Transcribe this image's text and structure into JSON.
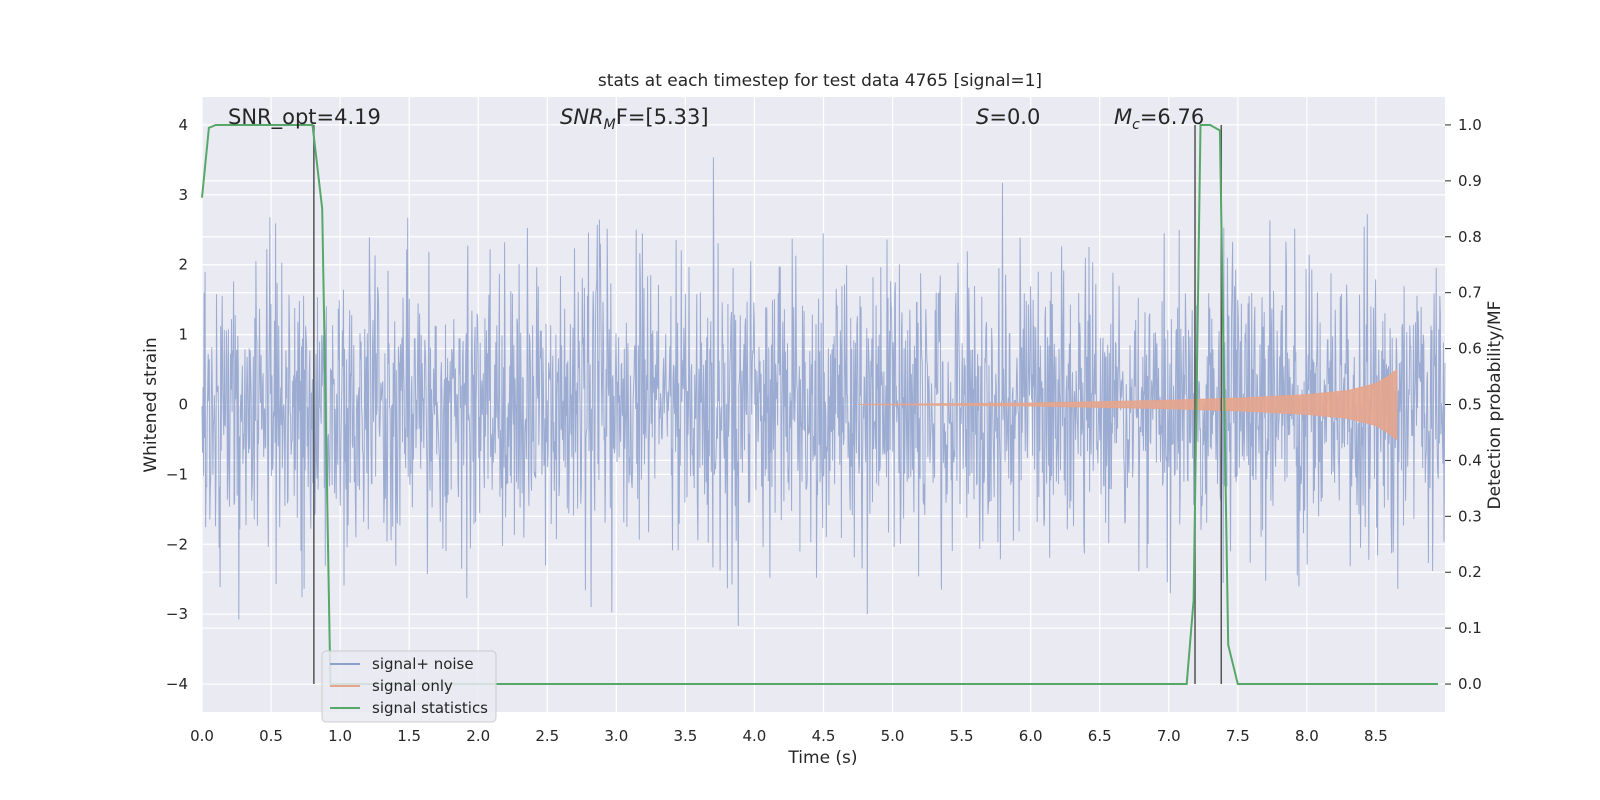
{
  "chart_data": {
    "type": "line",
    "title": "stats at each timestep for test data 4765 [signal=1]",
    "xlabel": "Time (s)",
    "ylabel": "Whitened strain",
    "y2label": "Detection probability/MF",
    "xlim": [
      0.0,
      9.0
    ],
    "ylim": [
      -4.4,
      4.4
    ],
    "y2lim": [
      -0.05,
      1.05
    ],
    "x_ticks": [
      0.0,
      0.5,
      1.0,
      1.5,
      2.0,
      2.5,
      3.0,
      3.5,
      4.0,
      4.5,
      5.0,
      5.5,
      6.0,
      6.5,
      7.0,
      7.5,
      8.0,
      8.5
    ],
    "x_tick_labels": [
      "0.0",
      "0.5",
      "1.0",
      "1.5",
      "2.0",
      "2.5",
      "3.0",
      "3.5",
      "4.0",
      "4.5",
      "5.0",
      "5.5",
      "6.0",
      "6.5",
      "7.0",
      "7.5",
      "8.0",
      "8.5"
    ],
    "y_ticks": [
      -4,
      -3,
      -2,
      -1,
      0,
      1,
      2,
      3,
      4
    ],
    "y_tick_labels": [
      "−4",
      "−3",
      "−2",
      "−1",
      "0",
      "1",
      "2",
      "3",
      "4"
    ],
    "y2_ticks": [
      0.0,
      0.1,
      0.2,
      0.3,
      0.4,
      0.5,
      0.6,
      0.7,
      0.8,
      0.9,
      1.0
    ],
    "y2_tick_labels": [
      "0.0",
      "0.1",
      "0.2",
      "0.3",
      "0.4",
      "0.5",
      "0.6",
      "0.7",
      "0.8",
      "0.9",
      "1.0"
    ],
    "grid": true,
    "legend_position": "lower-left",
    "legend": [
      "signal+ noise",
      "signal only",
      "signal statistics"
    ],
    "annotations": {
      "snr_opt": "SNR_opt=4.19",
      "snr_mf_main": "SNR",
      "snr_mf_sub": "M",
      "snr_mf_rest": "F=[5.33]",
      "s_main": "S",
      "s_rest": "=0.0",
      "mc_main": "M",
      "mc_sub": "c",
      "mc_rest": "=6.76"
    },
    "series": [
      {
        "name": "signal+ noise",
        "color": "#8da0cb",
        "noise_sigma": 1.0,
        "approx_envelope": {
          "upper": 4.0,
          "lower": -4.0
        }
      },
      {
        "name": "signal only",
        "color": "#e5a58c",
        "x_start": 4.75,
        "x_end": 8.65,
        "envelope_amplitude": [
          [
            4.75,
            0.0
          ],
          [
            6.0,
            0.02
          ],
          [
            7.0,
            0.06
          ],
          [
            7.5,
            0.09
          ],
          [
            8.0,
            0.14
          ],
          [
            8.3,
            0.2
          ],
          [
            8.5,
            0.3
          ],
          [
            8.6,
            0.42
          ],
          [
            8.65,
            0.5
          ]
        ]
      },
      {
        "name": "signal statistics",
        "color": "#55a868",
        "axis": "right",
        "points": [
          [
            0.0,
            0.87
          ],
          [
            0.05,
            0.995
          ],
          [
            0.1,
            1.0
          ],
          [
            0.8,
            1.0
          ],
          [
            0.87,
            0.85
          ],
          [
            0.93,
            0.0
          ],
          [
            7.13,
            0.0
          ],
          [
            7.18,
            0.15
          ],
          [
            7.23,
            1.0
          ],
          [
            7.3,
            1.0
          ],
          [
            7.37,
            0.99
          ],
          [
            7.43,
            0.07
          ],
          [
            7.5,
            0.0
          ],
          [
            8.95,
            0.0
          ]
        ]
      }
    ],
    "vertical_markers": {
      "color": "#555555",
      "x": [
        0.81,
        7.19,
        7.38
      ]
    }
  }
}
